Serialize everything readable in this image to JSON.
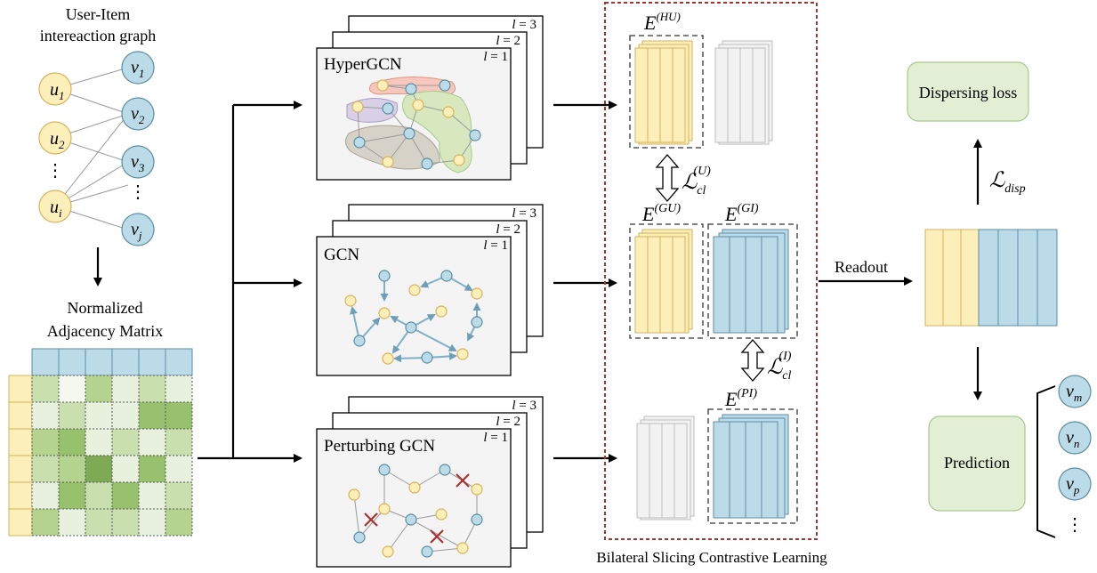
{
  "graph": {
    "title_line1": "User-Item",
    "title_line2": "intereaction graph",
    "users": [
      {
        "base": "u",
        "sub": "1"
      },
      {
        "base": "u",
        "sub": "2"
      },
      {
        "base": "u",
        "sub": "i"
      }
    ],
    "items": [
      {
        "base": "v",
        "sub": "1"
      },
      {
        "base": "v",
        "sub": "2"
      },
      {
        "base": "v",
        "sub": "3"
      },
      {
        "base": "v",
        "sub": "j"
      }
    ],
    "ellipsis_user": "⋮",
    "ellipsis_item": "⋮"
  },
  "matrix": {
    "title_line1": "Normalized",
    "title_line2": "Adjacency Matrix",
    "header_color": "#bcdbe8",
    "row_color": "#fdefb9",
    "cells": [
      [
        2,
        0,
        3,
        1,
        2,
        1
      ],
      [
        1,
        2,
        1,
        1,
        4,
        4
      ],
      [
        3,
        4,
        1,
        2,
        1,
        2
      ],
      [
        2,
        3,
        5,
        1,
        4,
        1
      ],
      [
        1,
        4,
        2,
        4,
        1,
        2
      ],
      [
        3,
        1,
        2,
        2,
        1,
        3
      ]
    ],
    "palette": [
      "#f4f8ee",
      "#e8f1dd",
      "#c9dfae",
      "#b3d38f",
      "#98c16d",
      "#7eaa56"
    ]
  },
  "panels": {
    "hypergcn": {
      "title": "HyperGCN"
    },
    "gcn": {
      "title": "GCN"
    },
    "perturbing": {
      "title": "Perturbing GCN"
    },
    "layers": {
      "var": "l",
      "eq": " = ",
      "values": [
        "3",
        "2",
        "1"
      ]
    }
  },
  "embeddings": {
    "hu": {
      "base": "E",
      "sup": "(HU)"
    },
    "gu": {
      "base": "E",
      "sup": "(GU)"
    },
    "gi": {
      "base": "E",
      "sup": "(GI)"
    },
    "pi": {
      "base": "E",
      "sup": "(PI)"
    },
    "loss_u": {
      "base": "ℒ",
      "sub": "cl",
      "sup": "(U)"
    },
    "loss_i": {
      "base": "ℒ",
      "sub": "cl",
      "sup": "(I)"
    }
  },
  "bscl_label": "Bilateral Slicing Contrastive Learning",
  "readout_label": "Readout",
  "dispersing": {
    "label": "Dispersing loss",
    "loss_base": "ℒ",
    "loss_sub": "disp"
  },
  "prediction": {
    "label": "Prediction",
    "items": [
      {
        "base": "v",
        "sub": "m"
      },
      {
        "base": "v",
        "sub": "n"
      },
      {
        "base": "v",
        "sub": "p"
      }
    ],
    "ellipsis": "⋮"
  },
  "colors": {
    "user": "#fdefb9",
    "item": "#bcdbe8",
    "green_box": "#e2efd4",
    "red_frame": "#a83232",
    "hyper_red": "#f6c7bd",
    "hyper_purple": "#d9d0e8",
    "hyper_green": "#d7e8bf",
    "hyper_gray": "#d7d2c7"
  }
}
